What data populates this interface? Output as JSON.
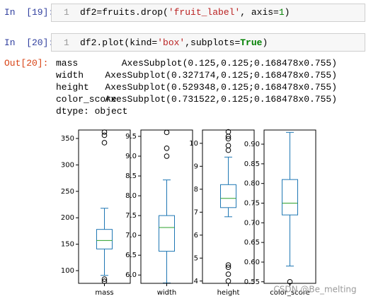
{
  "cells": [
    {
      "prompt": "In  [19]:",
      "line_number": "1",
      "code": [
        "df2=fruits.drop(",
        "'fruit_label'",
        ", axis=",
        "1",
        ")"
      ]
    },
    {
      "prompt": "In  [20]:",
      "line_number": "1",
      "code": [
        "df2.plot(kind=",
        "'box'",
        ",subplots=",
        "True",
        ")"
      ],
      "out_prompt": "Out[20]:",
      "output": [
        [
          "mass",
          "AxesSubplot(0.125,0.125;0.168478x0.755)"
        ],
        [
          "width",
          "AxesSubplot(0.327174,0.125;0.168478x0.755)"
        ],
        [
          "height",
          "AxesSubplot(0.529348,0.125;0.168478x0.755)"
        ],
        [
          "color_score",
          "AxesSubplot(0.731522,0.125;0.168478x0.755)"
        ]
      ],
      "dtype": "dtype: object"
    }
  ],
  "chart_data": [
    {
      "type": "box",
      "categories": [
        "mass"
      ],
      "color": "#1f77b4",
      "median_color": "#2ca02c",
      "box": {
        "whislo": 91,
        "q1": 141,
        "med": 157,
        "q3": 178,
        "whishi": 218,
        "fliers": [
          362,
          356,
          342,
          84,
          80
        ]
      },
      "ylim": [
        76,
        366
      ],
      "yticks": [
        100,
        150,
        200,
        250,
        300,
        350
      ]
    },
    {
      "type": "box",
      "categories": [
        "width"
      ],
      "color": "#1f77b4",
      "median_color": "#2ca02c",
      "box": {
        "whislo": 5.8,
        "q1": 6.6,
        "med": 7.2,
        "q3": 7.5,
        "whishi": 8.4,
        "fliers": [
          9.6,
          9.2,
          9.0
        ]
      },
      "ylim": [
        5.79,
        9.66
      ],
      "yticks": [
        {
          "value": 6,
          "label": "6.0"
        },
        6.5,
        {
          "value": 7,
          "label": "7.0"
        },
        7.5,
        {
          "value": 8,
          "label": "8.0"
        },
        8.5,
        {
          "value": 9,
          "label": "9.0"
        },
        9.5
      ]
    },
    {
      "type": "box",
      "categories": [
        "height"
      ],
      "color": "#1f77b4",
      "median_color": "#2ca02c",
      "box": {
        "whislo": 6.8,
        "q1": 7.2,
        "med": 7.6,
        "q3": 8.2,
        "whishi": 9.4,
        "fliers": [
          10.5,
          10.3,
          10.2,
          9.9,
          9.7,
          4.7,
          4.6,
          4.3,
          4.0
        ]
      },
      "ylim": [
        3.9,
        10.58
      ],
      "yticks": [
        4,
        5,
        6,
        7,
        8,
        9,
        10
      ]
    },
    {
      "type": "box",
      "categories": [
        "color_score"
      ],
      "color": "#1f77b4",
      "median_color": "#2ca02c",
      "box": {
        "whislo": 0.59,
        "q1": 0.72,
        "med": 0.75,
        "q3": 0.81,
        "whishi": 0.93,
        "fliers": [
          0.55
        ]
      },
      "ylim": [
        0.546,
        0.936
      ],
      "yticks": [
        0.55,
        {
          "value": 0.6,
          "label": "0.60"
        },
        0.65,
        {
          "value": 0.7,
          "label": "0.70"
        },
        0.75,
        {
          "value": 0.8,
          "label": "0.80"
        },
        0.85,
        {
          "value": 0.9,
          "label": "0.90"
        }
      ]
    }
  ],
  "watermark": "CSDN @Be_melting"
}
